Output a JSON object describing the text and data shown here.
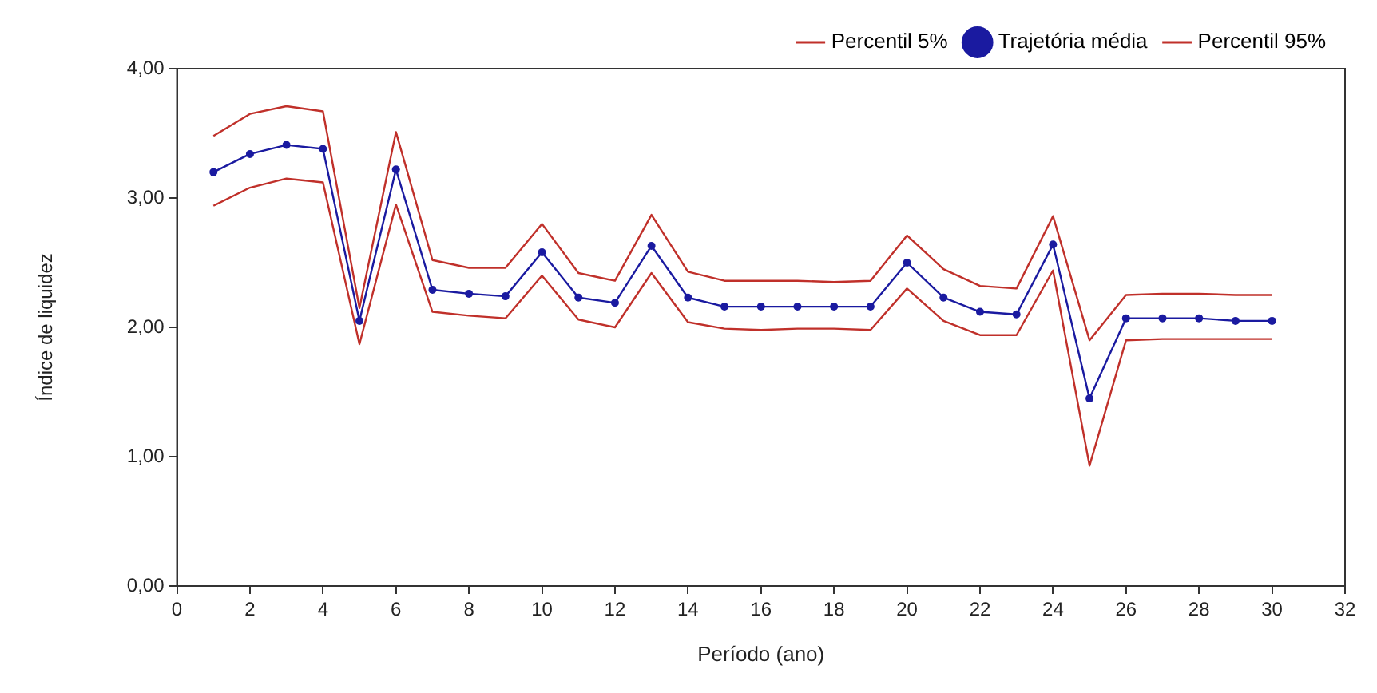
{
  "chart_data": {
    "type": "line",
    "xlabel": "Período (ano)",
    "ylabel": "Índice de liquidez",
    "x": [
      1,
      2,
      3,
      4,
      5,
      6,
      7,
      8,
      9,
      10,
      11,
      12,
      13,
      14,
      15,
      16,
      17,
      18,
      19,
      20,
      21,
      22,
      23,
      24,
      25,
      26,
      27,
      28,
      29,
      30
    ],
    "series": [
      {
        "name": "Percentil 5%",
        "color": "#c0302a",
        "marker": "none",
        "values": [
          2.94,
          3.08,
          3.15,
          3.12,
          1.87,
          2.95,
          2.12,
          2.09,
          2.07,
          2.4,
          2.06,
          2.0,
          2.42,
          2.04,
          1.99,
          1.98,
          1.99,
          1.99,
          1.98,
          2.3,
          2.05,
          1.94,
          1.94,
          2.44,
          0.93,
          1.9,
          1.91,
          1.91,
          1.91,
          1.91
        ]
      },
      {
        "name": "Trajetória média",
        "color": "#1a1aa0",
        "marker": "circle",
        "values": [
          3.2,
          3.34,
          3.41,
          3.38,
          2.05,
          3.22,
          2.29,
          2.26,
          2.24,
          2.58,
          2.23,
          2.19,
          2.63,
          2.23,
          2.16,
          2.16,
          2.16,
          2.16,
          2.16,
          2.5,
          2.23,
          2.12,
          2.1,
          2.64,
          1.45,
          2.07,
          2.07,
          2.07,
          2.05,
          2.05
        ]
      },
      {
        "name": "Percentil 95%",
        "color": "#c0302a",
        "marker": "none",
        "values": [
          3.48,
          3.65,
          3.71,
          3.67,
          2.15,
          3.51,
          2.52,
          2.46,
          2.46,
          2.8,
          2.42,
          2.36,
          2.87,
          2.43,
          2.36,
          2.36,
          2.36,
          2.35,
          2.36,
          2.71,
          2.45,
          2.32,
          2.3,
          2.86,
          1.9,
          2.25,
          2.26,
          2.26,
          2.25,
          2.25
        ]
      }
    ],
    "xlim": [
      0,
      32
    ],
    "xticks": [
      0,
      2,
      4,
      6,
      8,
      10,
      12,
      14,
      16,
      18,
      20,
      22,
      24,
      26,
      28,
      30,
      32
    ],
    "ylim": [
      0,
      4
    ],
    "yticks": [
      {
        "value": 0,
        "label": "0,00"
      },
      {
        "value": 1,
        "label": "1,00"
      },
      {
        "value": 2,
        "label": "2,00"
      },
      {
        "value": 3,
        "label": "3,00"
      },
      {
        "value": 4,
        "label": "4,00"
      }
    ],
    "grid": false,
    "legend": "top",
    "line_style": "solid"
  }
}
